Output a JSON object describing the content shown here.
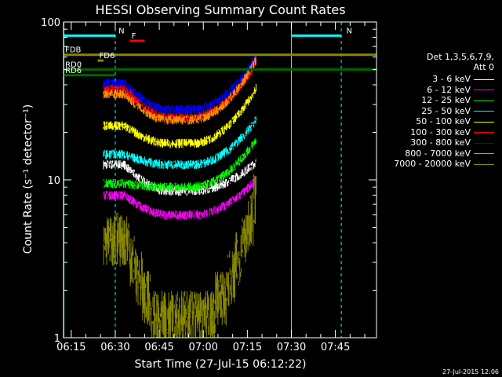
{
  "chart_data": {
    "type": "line",
    "title": "HESSI Observing Summary Count Rates",
    "xlabel": "Start Time (27-Jul-15 06:12:22)",
    "ylabel": "Count Rate (s⁻¹ detector⁻¹)",
    "ylim": [
      1,
      100
    ],
    "yscale": "log",
    "y_tick_labels": [
      "1",
      "10",
      "100"
    ],
    "x_tick_labels": [
      "06:15",
      "06:30",
      "06:45",
      "07:00",
      "07:15",
      "07:30",
      "07:45"
    ],
    "x_tick_minutes": [
      15,
      30,
      45,
      60,
      75,
      90,
      105
    ],
    "xlim_minutes": [
      12.37,
      119
    ],
    "legend_header_1": "Det 1,3,5,6,7,9,",
    "legend_header_2": "Att 0",
    "legend_placement": "right",
    "footer_date": "27-Jul-2015 12:06",
    "data_window_minutes": [
      26,
      78
    ],
    "valley_minutes": [
      48,
      56
    ],
    "series": [
      {
        "name": "3 - 6 keV",
        "color": "#ffffff",
        "start": 12.5,
        "min": 8.5,
        "end": 13
      },
      {
        "name": "6 - 12 keV",
        "color": "#ff00ff",
        "start": 8.0,
        "min": 6.0,
        "end": 10
      },
      {
        "name": "12 - 25 keV",
        "color": "#00ff00",
        "start": 9.5,
        "min": 9.0,
        "end": 18
      },
      {
        "name": "25 - 50 keV",
        "color": "#00ffff",
        "start": 14.5,
        "min": 12.5,
        "end": 24
      },
      {
        "name": "50 - 100 keV",
        "color": "#ffff00",
        "start": 22,
        "min": 17,
        "end": 38
      },
      {
        "name": "100 - 300 keV",
        "color": "#ff0000",
        "start": 38,
        "min": 25,
        "end": 55
      },
      {
        "name": "300 - 800 keV",
        "color": "#0000ff",
        "start": 41,
        "min": 28,
        "end": 60
      },
      {
        "name": "800 - 7000 keV",
        "color": "#ff8c00",
        "start": 35,
        "min": 24,
        "end": 58
      },
      {
        "name": "7000 - 20000 keV",
        "color": "#888800",
        "start": 4.8,
        "min": 1.2,
        "end": 7.5
      }
    ],
    "flags": [
      {
        "label": "N",
        "color": "#00ffff",
        "y": 82,
        "x_start": 12.4,
        "x_end": 30
      },
      {
        "label": "N",
        "color": "#00ffff",
        "y": 82,
        "x_start": 90,
        "x_end": 107
      },
      {
        "label": "F",
        "color": "#ff0000",
        "y": 76,
        "x_start": 35,
        "x_end": 40
      },
      {
        "label": "FDB",
        "color": "#888800",
        "y": 62,
        "x_start": 12.4,
        "x_end": 119
      },
      {
        "label": "FD6",
        "color": "#888800",
        "y": 57,
        "x_start": 24,
        "x_end": 26
      },
      {
        "label": "RD0",
        "color": "#006400",
        "y": 50,
        "x_start": 12.4,
        "x_end": 119
      },
      {
        "label": "RD6",
        "color": "#006400",
        "y": 46,
        "x_start": 12.4,
        "x_end": 30
      }
    ],
    "saa_solid_minutes": [
      12.5,
      90
    ],
    "saa_dashed_minutes": [
      30,
      107
    ]
  }
}
